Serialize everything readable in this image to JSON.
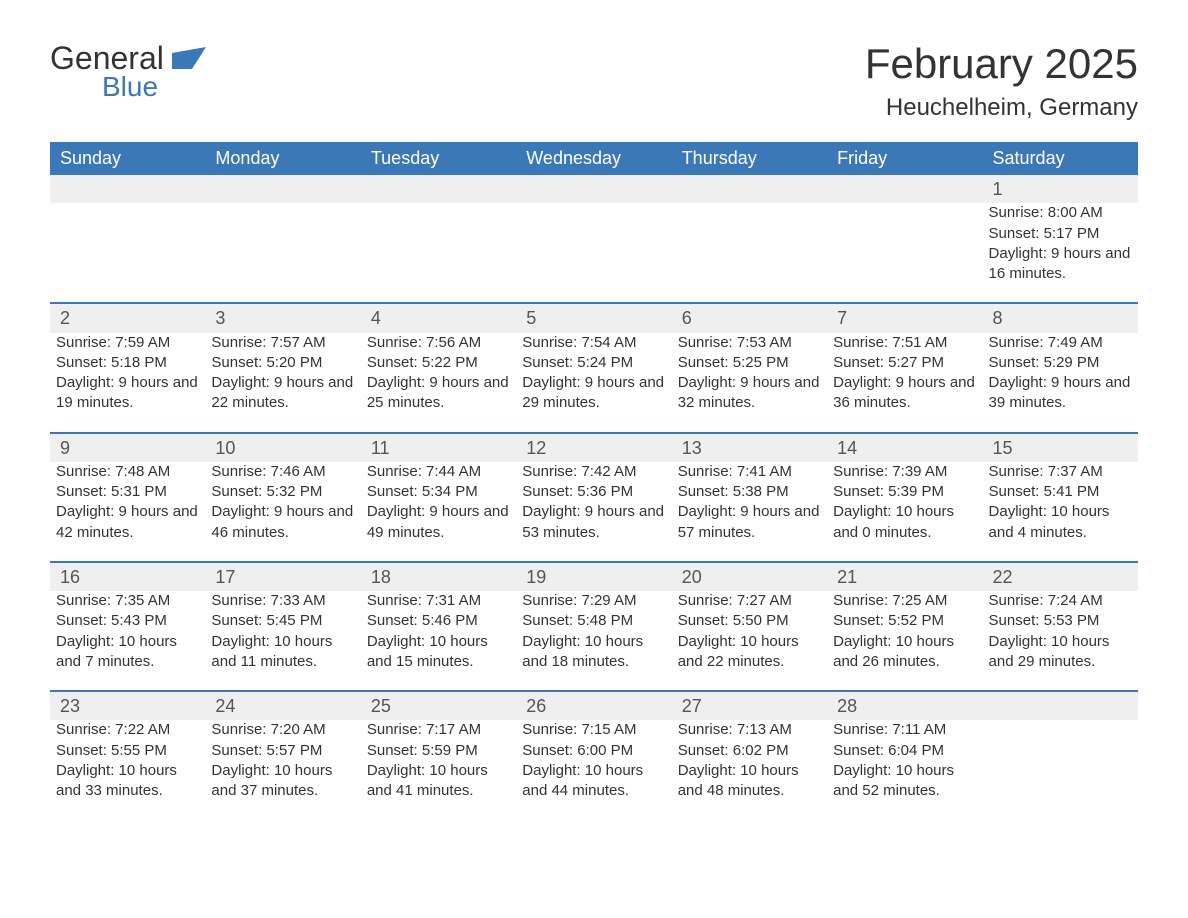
{
  "logo": {
    "text1": "General",
    "text2": "Blue"
  },
  "title": "February 2025",
  "location": "Heuchelheim, Germany",
  "colors": {
    "header_bg": "#3b78b8",
    "header_text": "#ffffff",
    "daynum_bg": "#efefef",
    "border_top": "#3b78b8",
    "body_text": "#333333",
    "background": "#ffffff"
  },
  "fonts": {
    "body_size_pt": 11,
    "title_size_pt": 32,
    "location_size_pt": 18,
    "th_size_pt": 14
  },
  "day_headers": [
    "Sunday",
    "Monday",
    "Tuesday",
    "Wednesday",
    "Thursday",
    "Friday",
    "Saturday"
  ],
  "weeks": [
    [
      null,
      null,
      null,
      null,
      null,
      null,
      {
        "n": "1",
        "sunrise": "8:00 AM",
        "sunset": "5:17 PM",
        "daylight": "9 hours and 16 minutes."
      }
    ],
    [
      {
        "n": "2",
        "sunrise": "7:59 AM",
        "sunset": "5:18 PM",
        "daylight": "9 hours and 19 minutes."
      },
      {
        "n": "3",
        "sunrise": "7:57 AM",
        "sunset": "5:20 PM",
        "daylight": "9 hours and 22 minutes."
      },
      {
        "n": "4",
        "sunrise": "7:56 AM",
        "sunset": "5:22 PM",
        "daylight": "9 hours and 25 minutes."
      },
      {
        "n": "5",
        "sunrise": "7:54 AM",
        "sunset": "5:24 PM",
        "daylight": "9 hours and 29 minutes."
      },
      {
        "n": "6",
        "sunrise": "7:53 AM",
        "sunset": "5:25 PM",
        "daylight": "9 hours and 32 minutes."
      },
      {
        "n": "7",
        "sunrise": "7:51 AM",
        "sunset": "5:27 PM",
        "daylight": "9 hours and 36 minutes."
      },
      {
        "n": "8",
        "sunrise": "7:49 AM",
        "sunset": "5:29 PM",
        "daylight": "9 hours and 39 minutes."
      }
    ],
    [
      {
        "n": "9",
        "sunrise": "7:48 AM",
        "sunset": "5:31 PM",
        "daylight": "9 hours and 42 minutes."
      },
      {
        "n": "10",
        "sunrise": "7:46 AM",
        "sunset": "5:32 PM",
        "daylight": "9 hours and 46 minutes."
      },
      {
        "n": "11",
        "sunrise": "7:44 AM",
        "sunset": "5:34 PM",
        "daylight": "9 hours and 49 minutes."
      },
      {
        "n": "12",
        "sunrise": "7:42 AM",
        "sunset": "5:36 PM",
        "daylight": "9 hours and 53 minutes."
      },
      {
        "n": "13",
        "sunrise": "7:41 AM",
        "sunset": "5:38 PM",
        "daylight": "9 hours and 57 minutes."
      },
      {
        "n": "14",
        "sunrise": "7:39 AM",
        "sunset": "5:39 PM",
        "daylight": "10 hours and 0 minutes."
      },
      {
        "n": "15",
        "sunrise": "7:37 AM",
        "sunset": "5:41 PM",
        "daylight": "10 hours and 4 minutes."
      }
    ],
    [
      {
        "n": "16",
        "sunrise": "7:35 AM",
        "sunset": "5:43 PM",
        "daylight": "10 hours and 7 minutes."
      },
      {
        "n": "17",
        "sunrise": "7:33 AM",
        "sunset": "5:45 PM",
        "daylight": "10 hours and 11 minutes."
      },
      {
        "n": "18",
        "sunrise": "7:31 AM",
        "sunset": "5:46 PM",
        "daylight": "10 hours and 15 minutes."
      },
      {
        "n": "19",
        "sunrise": "7:29 AM",
        "sunset": "5:48 PM",
        "daylight": "10 hours and 18 minutes."
      },
      {
        "n": "20",
        "sunrise": "7:27 AM",
        "sunset": "5:50 PM",
        "daylight": "10 hours and 22 minutes."
      },
      {
        "n": "21",
        "sunrise": "7:25 AM",
        "sunset": "5:52 PM",
        "daylight": "10 hours and 26 minutes."
      },
      {
        "n": "22",
        "sunrise": "7:24 AM",
        "sunset": "5:53 PM",
        "daylight": "10 hours and 29 minutes."
      }
    ],
    [
      {
        "n": "23",
        "sunrise": "7:22 AM",
        "sunset": "5:55 PM",
        "daylight": "10 hours and 33 minutes."
      },
      {
        "n": "24",
        "sunrise": "7:20 AM",
        "sunset": "5:57 PM",
        "daylight": "10 hours and 37 minutes."
      },
      {
        "n": "25",
        "sunrise": "7:17 AM",
        "sunset": "5:59 PM",
        "daylight": "10 hours and 41 minutes."
      },
      {
        "n": "26",
        "sunrise": "7:15 AM",
        "sunset": "6:00 PM",
        "daylight": "10 hours and 44 minutes."
      },
      {
        "n": "27",
        "sunrise": "7:13 AM",
        "sunset": "6:02 PM",
        "daylight": "10 hours and 48 minutes."
      },
      {
        "n": "28",
        "sunrise": "7:11 AM",
        "sunset": "6:04 PM",
        "daylight": "10 hours and 52 minutes."
      },
      null
    ]
  ],
  "labels": {
    "sunrise": "Sunrise: ",
    "sunset": "Sunset: ",
    "daylight": "Daylight: "
  }
}
